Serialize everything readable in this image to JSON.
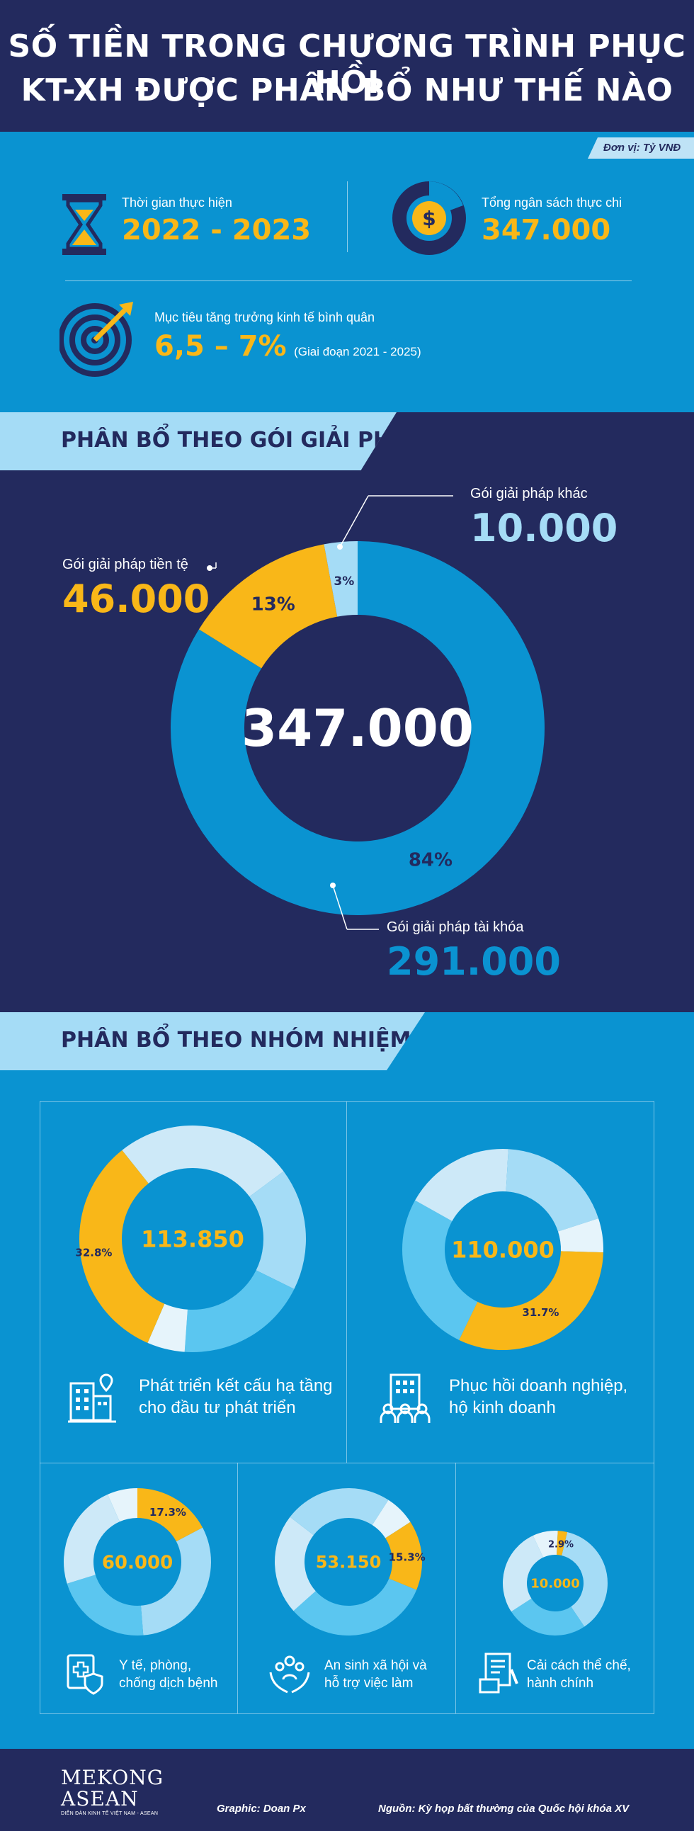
{
  "header": {
    "title_line1": "SỐ TIỀN TRONG CHƯƠNG TRÌNH PHỤC HỒI",
    "title_line2": "KT-XH ĐƯỢC PHÂN BỔ NHƯ THẾ NÀO"
  },
  "overview": {
    "unit": "Đơn vị: Tỷ VNĐ",
    "period_label": "Thời gian thực hiện",
    "period_value": "2022 - 2023",
    "budget_label": "Tổng ngân sách thực chi",
    "budget_value": "347.000",
    "growth_label": "Mục tiêu tăng trưởng kinh tế bình quân",
    "growth_value": "6,5 – 7%",
    "growth_note": "(Giai đoạn 2021 - 2025)"
  },
  "section_solutions": {
    "title": "PHÂN BỔ THEO GÓI GIẢI PHÁP"
  },
  "section_tasks": {
    "title": "PHÂN BỔ THEO NHÓM NHIỆM VỤ"
  },
  "footer": {
    "brand_line1": "MEKONG",
    "brand_line2": "ASEAN",
    "brand_sub": "DIỄN ĐÀN KINH TẾ VIỆT NAM - ASEAN",
    "graphic_credit": "Graphic: Doan Px",
    "source": "Nguồn: Kỳ họp bất thường của Quốc hội khóa XV"
  },
  "colors": {
    "navy": "#232a5e",
    "blue": "#0a93d1",
    "yellow": "#f9b718",
    "light_blue": "#a5dcf6",
    "mid_blue": "#5bc6f0"
  },
  "chart_data": [
    {
      "type": "pie",
      "id": "solutions",
      "total": "347.000",
      "series": [
        {
          "name": "Gói giải pháp tài khóa",
          "value": 291000,
          "value_label": "291.000",
          "percent": 84,
          "percent_label": "84%",
          "color": "#0a93d1"
        },
        {
          "name": "Gói giải pháp tiền tệ",
          "value": 46000,
          "value_label": "46.000",
          "percent": 13,
          "percent_label": "13%",
          "color": "#f9b718"
        },
        {
          "name": "Gói giải pháp khác",
          "value": 10000,
          "value_label": "10.000",
          "percent": 3,
          "percent_label": "3%",
          "color": "#a5dcf6"
        }
      ]
    },
    {
      "type": "pie",
      "id": "task-infrastructure",
      "total": "113.850",
      "label_line1": "Phát triển kết cấu hạ tầng",
      "label_line2": "cho đầu tư phát triển",
      "highlight_percent": 32.8,
      "highlight_label": "32.8%"
    },
    {
      "type": "pie",
      "id": "task-business",
      "total": "110.000",
      "label_line1": "Phục hồi doanh nghiệp,",
      "label_line2": "hộ kinh doanh",
      "highlight_percent": 31.7,
      "highlight_label": "31.7%"
    },
    {
      "type": "pie",
      "id": "task-health",
      "total": "60.000",
      "label_line1": "Y tế, phòng,",
      "label_line2": "chống dịch bệnh",
      "highlight_percent": 17.3,
      "highlight_label": "17.3%"
    },
    {
      "type": "pie",
      "id": "task-social",
      "total": "53.150",
      "label_line1": "An sinh xã hội và",
      "label_line2": "hỗ trợ việc làm",
      "highlight_percent": 15.3,
      "highlight_label": "15.3%"
    },
    {
      "type": "pie",
      "id": "task-reform",
      "total": "10.000",
      "label_line1": "Cải cách thể chế,",
      "label_line2": "hành chính",
      "highlight_percent": 2.9,
      "highlight_label": "2.9%"
    }
  ]
}
